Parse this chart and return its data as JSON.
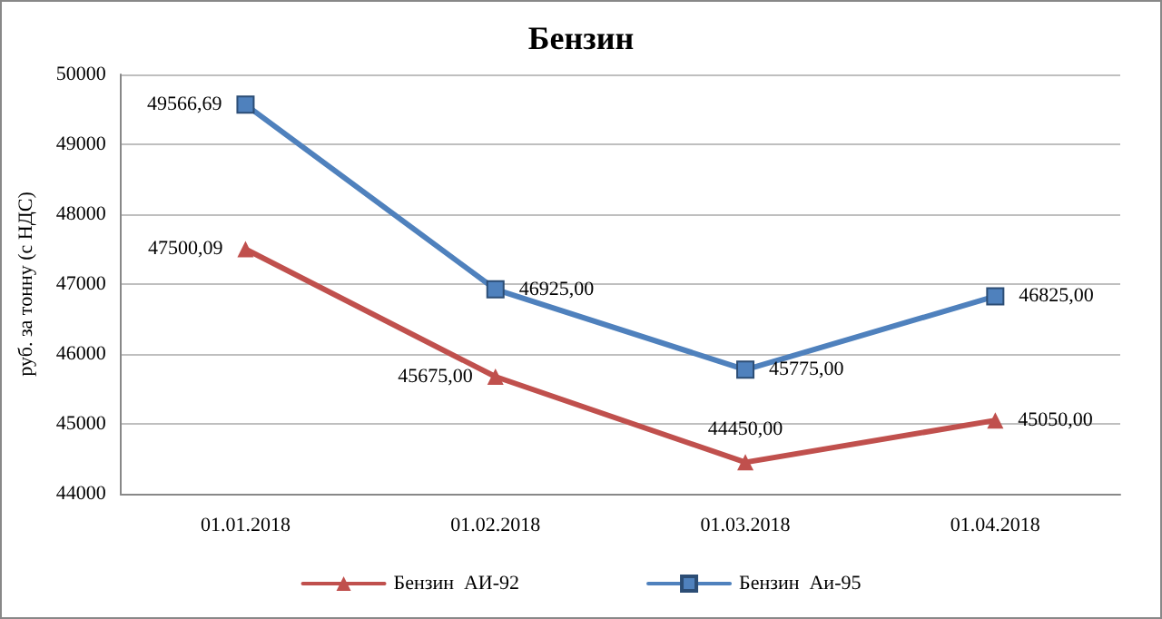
{
  "chart_data": {
    "type": "line",
    "title": "Бензин",
    "ylabel": "руб. за тонну (с НДС)",
    "categories": [
      "01.01.2018",
      "01.02.2018",
      "01.03.2018",
      "01.04.2018"
    ],
    "series": [
      {
        "name": "Бензин  АИ-92",
        "color": "#c0504d",
        "marker": "triangle",
        "values": [
          47500.09,
          45675,
          44450,
          45050
        ],
        "value_labels": [
          "47500,09",
          "45675,00",
          "44450,00",
          "45050,00"
        ]
      },
      {
        "name": "Бензин  Аи-95",
        "color": "#4f81bd",
        "marker": "square",
        "values": [
          49566.69,
          46925,
          45775,
          46825
        ],
        "value_labels": [
          "49566,69",
          "46925,00",
          "45775,00",
          "46825,00"
        ]
      }
    ],
    "ylim": [
      44000,
      50000
    ],
    "yticks": [
      44000,
      45000,
      46000,
      47000,
      48000,
      49000,
      50000
    ],
    "grid": "y",
    "legend": "bottom"
  }
}
